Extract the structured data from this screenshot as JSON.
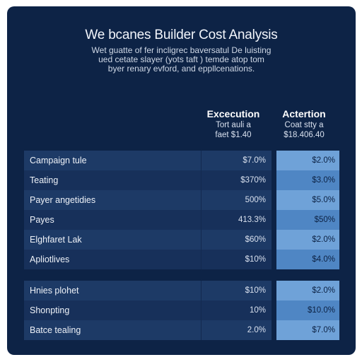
{
  "header": {
    "title": "We bcanes Builder Cost Analysis",
    "intro_lines": [
      "Wet guatte of fer incligrec baversatul De luisting",
      "ued cetate slayer (yots taft ) temde atop tom",
      "byer renary evford, and eppllcenations."
    ]
  },
  "columns": {
    "execution": {
      "name": "Excecution",
      "sub1": "Tort auli a",
      "sub2": "faet $1.40"
    },
    "actertion": {
      "name": "Actertion",
      "sub1": "Coat stty a",
      "sub2": "$18.406.40"
    }
  },
  "table_main": {
    "rows": [
      {
        "label": "Campaign tule",
        "execution": "$7.0%",
        "actertion": "$2.0%"
      },
      {
        "label": "Teating",
        "execution": "$370%",
        "actertion": "$3.0%"
      },
      {
        "label": "Payer angetidies",
        "execution": "500%",
        "actertion": "$5.0%"
      },
      {
        "label": "Payes",
        "execution": "413.3%",
        "actertion": "$50%"
      },
      {
        "label": "Elghfaret Lak",
        "execution": "$60%",
        "actertion": "$2.0%"
      },
      {
        "label": "Apliotlives",
        "execution": "$10%",
        "actertion": "$4.0%"
      }
    ]
  },
  "table_secondary": {
    "rows": [
      {
        "label": "Hnies plohet",
        "execution": "$10%",
        "actertion": "$2.0%"
      },
      {
        "label": "Shonpting",
        "execution": "10%",
        "actertion": "$10.0%"
      },
      {
        "label": "Batce tealing",
        "execution": "2.0%",
        "actertion": "$7.0%"
      }
    ]
  },
  "colors": {
    "card_background": "#0d2346",
    "row_dark": "#17305a",
    "row_light": "#1d3a66",
    "accent_light": "#6fa2d8",
    "accent_dark": "#4f86c4"
  }
}
